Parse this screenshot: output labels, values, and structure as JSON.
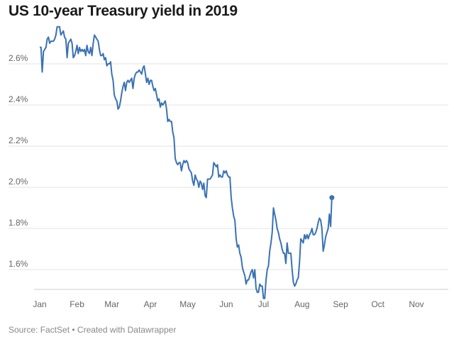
{
  "chart_data": {
    "type": "line",
    "title": "US 10-year Treasury yield in 2019",
    "source": "Source: FactSet • Created with Datawrapper",
    "xlabel": "",
    "ylabel": "",
    "ylim": [
      1.48,
      2.8
    ],
    "y_ticks": [
      1.6,
      1.8,
      2.0,
      2.2,
      2.4,
      2.6
    ],
    "y_tick_labels": [
      "1.6%",
      "1.8%",
      "2.0%",
      "2.2%",
      "2.4%",
      "2.6%"
    ],
    "x_ticks": [
      {
        "label": "Jan",
        "day": 2
      },
      {
        "label": "Feb",
        "day": 32
      },
      {
        "label": "Mar",
        "day": 60
      },
      {
        "label": "Apr",
        "day": 91
      },
      {
        "label": "May",
        "day": 121
      },
      {
        "label": "Jun",
        "day": 152
      },
      {
        "label": "Jul",
        "day": 182
      },
      {
        "label": "Aug",
        "day": 213
      },
      {
        "label": "Sep",
        "day": 244
      },
      {
        "label": "Oct",
        "day": 274
      },
      {
        "label": "Nov",
        "day": 305
      }
    ],
    "grid": true,
    "legend": "none",
    "line_color": "#3a72b4",
    "series": [
      {
        "name": "",
        "points": [
          [
            2,
            2.68
          ],
          [
            3,
            2.68
          ],
          [
            4,
            2.56
          ],
          [
            5,
            2.66
          ],
          [
            6,
            2.67
          ],
          [
            7,
            2.68
          ],
          [
            8,
            2.72
          ],
          [
            9,
            2.73
          ],
          [
            10,
            2.7
          ],
          [
            11,
            2.71
          ],
          [
            12,
            2.71
          ],
          [
            13,
            2.71
          ],
          [
            14,
            2.72
          ],
          [
            15,
            2.74
          ],
          [
            16,
            2.78
          ],
          [
            17,
            2.78
          ],
          [
            18,
            2.78
          ],
          [
            19,
            2.74
          ],
          [
            20,
            2.75
          ],
          [
            21,
            2.76
          ],
          [
            22,
            2.73
          ],
          [
            23,
            2.72
          ],
          [
            24,
            2.63
          ],
          [
            25,
            2.7
          ],
          [
            26,
            2.71
          ],
          [
            27,
            2.72
          ],
          [
            28,
            2.7
          ],
          [
            29,
            2.63
          ],
          [
            30,
            2.64
          ],
          [
            31,
            2.66
          ],
          [
            32,
            2.69
          ],
          [
            33,
            2.65
          ],
          [
            34,
            2.68
          ],
          [
            35,
            2.66
          ],
          [
            36,
            2.67
          ],
          [
            37,
            2.66
          ],
          [
            38,
            2.67
          ],
          [
            39,
            2.64
          ],
          [
            40,
            2.69
          ],
          [
            41,
            2.66
          ],
          [
            42,
            2.65
          ],
          [
            43,
            2.68
          ],
          [
            44,
            2.64
          ],
          [
            45,
            2.7
          ],
          [
            46,
            2.74
          ],
          [
            47,
            2.73
          ],
          [
            48,
            2.72
          ],
          [
            49,
            2.71
          ],
          [
            50,
            2.67
          ],
          [
            51,
            2.64
          ],
          [
            52,
            2.64
          ],
          [
            53,
            2.65
          ],
          [
            54,
            2.62
          ],
          [
            55,
            2.63
          ],
          [
            56,
            2.59
          ],
          [
            57,
            2.6
          ],
          [
            58,
            2.6
          ],
          [
            59,
            2.61
          ],
          [
            60,
            2.55
          ],
          [
            61,
            2.52
          ],
          [
            62,
            2.45
          ],
          [
            63,
            2.43
          ],
          [
            64,
            2.42
          ],
          [
            65,
            2.38
          ],
          [
            66,
            2.39
          ],
          [
            67,
            2.42
          ],
          [
            68,
            2.46
          ],
          [
            69,
            2.49
          ],
          [
            70,
            2.51
          ],
          [
            71,
            2.47
          ],
          [
            72,
            2.51
          ],
          [
            73,
            2.52
          ],
          [
            74,
            2.51
          ],
          [
            75,
            2.52
          ],
          [
            76,
            2.53
          ],
          [
            77,
            2.48
          ],
          [
            78,
            2.53
          ],
          [
            79,
            2.55
          ],
          [
            80,
            2.56
          ],
          [
            81,
            2.56
          ],
          [
            82,
            2.57
          ],
          [
            83,
            2.56
          ],
          [
            84,
            2.55
          ],
          [
            85,
            2.58
          ],
          [
            86,
            2.59
          ],
          [
            87,
            2.55
          ],
          [
            88,
            2.51
          ],
          [
            89,
            2.53
          ],
          [
            90,
            2.5
          ],
          [
            91,
            2.52
          ],
          [
            92,
            2.52
          ],
          [
            93,
            2.49
          ],
          [
            94,
            2.47
          ],
          [
            95,
            2.48
          ],
          [
            96,
            2.45
          ],
          [
            97,
            2.42
          ],
          [
            98,
            2.43
          ],
          [
            99,
            2.39
          ],
          [
            100,
            2.41
          ],
          [
            101,
            2.4
          ],
          [
            102,
            2.41
          ],
          [
            103,
            2.42
          ],
          [
            104,
            2.38
          ],
          [
            105,
            2.32
          ],
          [
            106,
            2.33
          ],
          [
            107,
            2.32
          ],
          [
            108,
            2.32
          ],
          [
            109,
            2.27
          ],
          [
            110,
            2.24
          ],
          [
            111,
            2.14
          ],
          [
            112,
            2.12
          ],
          [
            113,
            2.11
          ],
          [
            114,
            2.12
          ],
          [
            115,
            2.12
          ],
          [
            116,
            2.08
          ],
          [
            117,
            2.11
          ],
          [
            118,
            2.13
          ],
          [
            119,
            2.12
          ],
          [
            120,
            2.13
          ],
          [
            121,
            2.12
          ],
          [
            122,
            2.09
          ],
          [
            123,
            2.08
          ],
          [
            124,
            2.07
          ],
          [
            125,
            2.03
          ],
          [
            126,
            2.01
          ],
          [
            127,
            2.06
          ],
          [
            128,
            2.04
          ],
          [
            129,
            2.03
          ],
          [
            130,
            2.0
          ],
          [
            131,
            2.03
          ],
          [
            132,
            2.02
          ],
          [
            133,
            1.99
          ],
          [
            134,
            2.02
          ],
          [
            135,
            1.96
          ],
          [
            136,
            1.95
          ],
          [
            137,
            2.04
          ],
          [
            138,
            2.04
          ],
          [
            139,
            2.04
          ],
          [
            140,
            2.05
          ],
          [
            141,
            2.06
          ],
          [
            142,
            2.12
          ],
          [
            143,
            2.11
          ],
          [
            144,
            2.1
          ],
          [
            145,
            2.11
          ],
          [
            146,
            2.05
          ],
          [
            147,
            2.06
          ],
          [
            148,
            2.05
          ],
          [
            149,
            2.05
          ],
          [
            150,
            2.08
          ],
          [
            151,
            2.07
          ],
          [
            152,
            2.08
          ],
          [
            153,
            2.06
          ],
          [
            154,
            2.05
          ],
          [
            155,
            2.05
          ],
          [
            156,
            1.95
          ],
          [
            157,
            1.9
          ],
          [
            158,
            1.86
          ],
          [
            159,
            1.84
          ],
          [
            160,
            1.75
          ],
          [
            161,
            1.71
          ],
          [
            162,
            1.72
          ],
          [
            163,
            1.68
          ],
          [
            164,
            1.66
          ],
          [
            165,
            1.61
          ],
          [
            166,
            1.59
          ],
          [
            167,
            1.57
          ],
          [
            168,
            1.53
          ],
          [
            169,
            1.55
          ],
          [
            170,
            1.55
          ],
          [
            171,
            1.57
          ],
          [
            172,
            1.59
          ],
          [
            173,
            1.6
          ],
          [
            174,
            1.56
          ],
          [
            175,
            1.6
          ],
          [
            176,
            1.51
          ],
          [
            177,
            1.49
          ],
          [
            178,
            1.49
          ],
          [
            179,
            1.53
          ],
          [
            180,
            1.52
          ],
          [
            181,
            1.52
          ],
          [
            182,
            1.46
          ],
          [
            183,
            1.46
          ],
          [
            184,
            1.55
          ],
          [
            185,
            1.6
          ],
          [
            186,
            1.62
          ],
          [
            187,
            1.69
          ],
          [
            188,
            1.73
          ],
          [
            189,
            1.78
          ],
          [
            190,
            1.9
          ],
          [
            191,
            1.87
          ],
          [
            192,
            1.84
          ],
          [
            193,
            1.8
          ],
          [
            194,
            1.78
          ],
          [
            195,
            1.75
          ],
          [
            196,
            1.73
          ],
          [
            197,
            1.7
          ],
          [
            198,
            1.68
          ],
          [
            199,
            1.68
          ],
          [
            200,
            1.63
          ],
          [
            201,
            1.73
          ],
          [
            202,
            1.68
          ],
          [
            203,
            1.68
          ],
          [
            204,
            1.68
          ],
          [
            205,
            1.6
          ],
          [
            206,
            1.54
          ],
          [
            207,
            1.52
          ],
          [
            208,
            1.53
          ],
          [
            209,
            1.55
          ],
          [
            210,
            1.56
          ],
          [
            211,
            1.64
          ],
          [
            212,
            1.75
          ],
          [
            213,
            1.74
          ],
          [
            214,
            1.73
          ],
          [
            215,
            1.77
          ],
          [
            216,
            1.75
          ],
          [
            217,
            1.77
          ],
          [
            218,
            1.75
          ],
          [
            219,
            1.77
          ],
          [
            220,
            1.78
          ],
          [
            221,
            1.8
          ],
          [
            222,
            1.77
          ],
          [
            223,
            1.77
          ],
          [
            224,
            1.78
          ],
          [
            225,
            1.8
          ],
          [
            226,
            1.83
          ],
          [
            227,
            1.85
          ],
          [
            228,
            1.84
          ],
          [
            229,
            1.8
          ],
          [
            230,
            1.69
          ],
          [
            231,
            1.72
          ],
          [
            232,
            1.76
          ],
          [
            233,
            1.78
          ],
          [
            234,
            1.8
          ],
          [
            235,
            1.87
          ],
          [
            236,
            1.81
          ],
          [
            237,
            1.95
          ]
        ]
      }
    ]
  }
}
